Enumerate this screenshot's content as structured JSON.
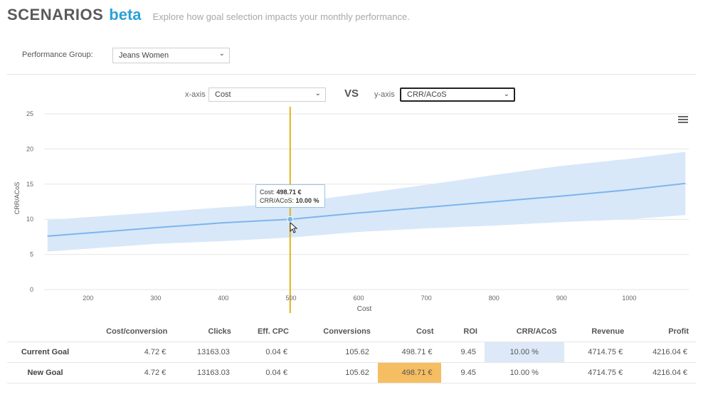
{
  "header": {
    "title": "SCENARIOS",
    "badge": "beta",
    "subtitle": "Explore how goal selection impacts your monthly performance."
  },
  "performance_group": {
    "label": "Performance Group:",
    "value": "Jeans Women"
  },
  "axis_selectors": {
    "x_label": "x-axis",
    "x_value": "Cost",
    "vs": "VS",
    "y_label": "y-axis",
    "y_value": "CRR/ACoS"
  },
  "icons": {
    "menu": "hamburger-menu-icon",
    "cursor": "mouse-pointer-icon",
    "chevron": "chevron-down-icon"
  },
  "colors": {
    "brand_accent": "#2aa0d8",
    "line": "#7cb5ec",
    "band": "#d6e7f9",
    "selection_line": "#e2b21a",
    "highlight_blue": "#dde9f8",
    "highlight_orange": "#f5be62"
  },
  "tooltip": {
    "cost_label": "Cost:",
    "cost_value": "498.71 €",
    "crr_label": "CRR/ACoS:",
    "crr_value": "10.00 %"
  },
  "chart_data": {
    "type": "line",
    "xlabel": "Cost",
    "ylabel": "CRR/ACoS",
    "xlim": [
      135,
      1088
    ],
    "ylim": [
      0,
      25
    ],
    "x_ticks": [
      200,
      300,
      400,
      500,
      600,
      700,
      800,
      900,
      1000
    ],
    "y_ticks": [
      0,
      5,
      10,
      15,
      20,
      25
    ],
    "grid": true,
    "series": [
      {
        "values": [
          [
            140,
            7.6
          ],
          [
            300,
            8.8
          ],
          [
            400,
            9.5
          ],
          [
            498.71,
            10.0
          ],
          [
            600,
            10.9
          ],
          [
            700,
            11.7
          ],
          [
            800,
            12.5
          ],
          [
            900,
            13.3
          ],
          [
            1000,
            14.2
          ],
          [
            1083,
            15.1
          ]
        ]
      }
    ],
    "band_upper": [
      [
        140,
        9.9
      ],
      [
        300,
        11.0
      ],
      [
        400,
        11.7
      ],
      [
        498.71,
        12.3
      ],
      [
        600,
        13.6
      ],
      [
        700,
        14.9
      ],
      [
        800,
        16.3
      ],
      [
        900,
        17.6
      ],
      [
        1000,
        18.6
      ],
      [
        1083,
        19.6
      ]
    ],
    "band_lower": [
      [
        140,
        5.4
      ],
      [
        300,
        6.5
      ],
      [
        400,
        6.9
      ],
      [
        498.71,
        7.4
      ],
      [
        600,
        8.2
      ],
      [
        700,
        8.7
      ],
      [
        800,
        9.1
      ],
      [
        900,
        9.6
      ],
      [
        1000,
        10.0
      ],
      [
        1083,
        10.6
      ]
    ],
    "selected_x": 498.71,
    "selected_point": [
      498.71,
      10.0
    ]
  },
  "table": {
    "columns": [
      "",
      "Cost/conversion",
      "Clicks",
      "Eff. CPC",
      "Conversions",
      "Cost",
      "ROI",
      "CRR/ACoS",
      "Revenue",
      "Profit"
    ],
    "rows": [
      {
        "label": "Current Goal",
        "cells": [
          "4.72 €",
          "13163.03",
          "0.04 €",
          "105.62",
          "498.71 €",
          "9.45",
          "10.00 %",
          "4714.75 €",
          "4216.04 €"
        ]
      },
      {
        "label": "New Goal",
        "cells": [
          "4.72 €",
          "13163.03",
          "0.04 €",
          "105.62",
          "498.71 €",
          "9.45",
          "10.00 %",
          "4714.75 €",
          "4216.04 €"
        ]
      }
    ]
  }
}
